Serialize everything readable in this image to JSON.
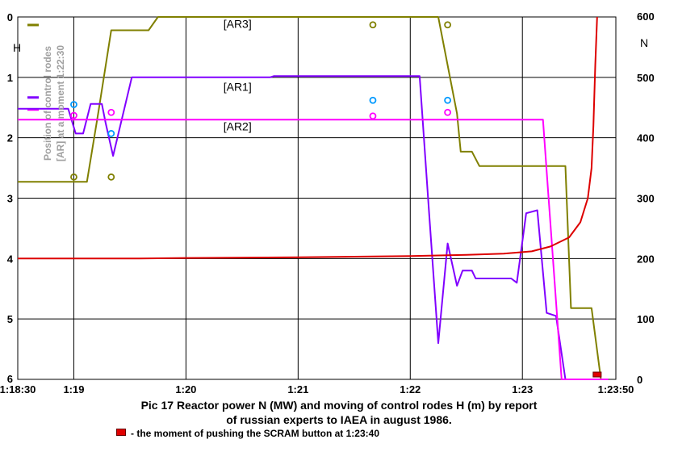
{
  "chart_data": {
    "type": "line",
    "title_line1": "Pic 17 Reactor power N (MW) and moving of control rodes H (m) by report",
    "title_line2": "of russian experts to IAEA in august 1986.",
    "legend_note": "-  the moment of pushing the SCRAM button at 1:23:40",
    "y_left_label": "H",
    "y_right_label": "N",
    "vertical_axis_title_line1": "Position of control rodes",
    "vertical_axis_title_line2": "[AR] at a moment 1:22:30",
    "x_range": [
      "1:18:30",
      "1:23:50"
    ],
    "x_ticks": [
      "1:18:30",
      "1:19",
      "1:20",
      "1:21",
      "1:22",
      "1:23",
      "1:23:50"
    ],
    "y_left_range": [
      0,
      6
    ],
    "y_left_ticks": [
      "0",
      "1",
      "2",
      "3",
      "4",
      "5",
      "6"
    ],
    "y_left_direction": "downward",
    "y_right_range": [
      0,
      600
    ],
    "y_right_ticks": [
      "600",
      "500",
      "400",
      "300",
      "200",
      "100",
      "0"
    ],
    "grid": true,
    "series": [
      {
        "name": "[AR3]",
        "axis": "left",
        "color": "#808000",
        "points": [
          [
            "1:18:30",
            2.73
          ],
          [
            "1:19:07",
            2.73
          ],
          [
            "1:19:13",
            1.6
          ],
          [
            "1:19:20",
            0.22
          ],
          [
            "1:19:40",
            0.22
          ],
          [
            "1:19:45",
            0
          ],
          [
            "1:22:15",
            0
          ],
          [
            "1:22:25",
            1.6
          ],
          [
            "1:22:27",
            2.23
          ],
          [
            "1:22:33",
            2.23
          ],
          [
            "1:22:37",
            2.47
          ],
          [
            "1:23:23",
            2.47
          ],
          [
            "1:23:26",
            4.82
          ],
          [
            "1:23:37",
            4.82
          ],
          [
            "1:23:42",
            6
          ]
        ]
      },
      {
        "name": "[AR1]",
        "axis": "left",
        "color": "#8000ff",
        "points": [
          [
            "1:18:30",
            1.52
          ],
          [
            "1:18:57",
            1.52
          ],
          [
            "1:19:01",
            1.93
          ],
          [
            "1:19:05",
            1.93
          ],
          [
            "1:19:09",
            1.44
          ],
          [
            "1:19:15",
            1.44
          ],
          [
            "1:19:17",
            1.75
          ],
          [
            "1:19:21",
            2.3
          ],
          [
            "1:19:31",
            1.0
          ],
          [
            "1:20:45",
            1.0
          ],
          [
            "1:20:47",
            0.98
          ],
          [
            "1:22:05",
            0.98
          ],
          [
            "1:22:10",
            3.2
          ],
          [
            "1:22:15",
            5.4
          ],
          [
            "1:22:20",
            3.75
          ],
          [
            "1:22:25",
            4.45
          ],
          [
            "1:22:28",
            4.2
          ],
          [
            "1:22:33",
            4.2
          ],
          [
            "1:22:35",
            4.33
          ],
          [
            "1:22:54",
            4.33
          ],
          [
            "1:22:57",
            4.4
          ],
          [
            "1:23:02",
            3.25
          ],
          [
            "1:23:08",
            3.2
          ],
          [
            "1:23:13",
            4.9
          ],
          [
            "1:23:18",
            4.95
          ],
          [
            "1:23:23",
            6
          ],
          [
            "1:23:40",
            6
          ]
        ]
      },
      {
        "name": "[AR2]",
        "axis": "left",
        "color": "#ff00ff",
        "points": [
          [
            "1:18:30",
            1.7
          ],
          [
            "1:23:11",
            1.7
          ],
          [
            "1:23:21",
            6
          ],
          [
            "1:23:46",
            6
          ]
        ]
      },
      {
        "name": "N",
        "axis": "right",
        "color": "#dd0000",
        "points": [
          [
            "1:18:30",
            200
          ],
          [
            "1:19:35",
            200
          ],
          [
            "1:20:00",
            201
          ],
          [
            "1:21:00",
            202
          ],
          [
            "1:22:00",
            204
          ],
          [
            "1:22:30",
            206
          ],
          [
            "1:22:50",
            208
          ],
          [
            "1:23:05",
            212
          ],
          [
            "1:23:15",
            220
          ],
          [
            "1:23:25",
            235
          ],
          [
            "1:23:31",
            260
          ],
          [
            "1:23:35",
            300
          ],
          [
            "1:23:37",
            350
          ],
          [
            "1:23:38",
            420
          ],
          [
            "1:23:39",
            520
          ],
          [
            "1:23:40",
            600
          ]
        ]
      }
    ],
    "point_markers": [
      {
        "series": "[AR3]",
        "color": "#808000",
        "points": [
          [
            "1:19",
            2.65
          ],
          [
            "1:19:20",
            2.65
          ],
          [
            "1:21:40",
            0.13
          ],
          [
            "1:22:20",
            0.13
          ]
        ]
      },
      {
        "series": "[AR1]",
        "color": "#0099ff",
        "points": [
          [
            "1:19",
            1.45
          ],
          [
            "1:19:20",
            1.93
          ],
          [
            "1:21:40",
            1.38
          ],
          [
            "1:22:20",
            1.38
          ]
        ]
      },
      {
        "series": "[AR2]",
        "color": "#ff00ff",
        "points": [
          [
            "1:19",
            1.63
          ],
          [
            "1:19:20",
            1.58
          ],
          [
            "1:21:40",
            1.64
          ],
          [
            "1:22:20",
            1.58
          ]
        ]
      }
    ],
    "series_labels": [
      {
        "text": "[AR3]",
        "at": [
          "1:20:20",
          0.18
        ]
      },
      {
        "text": "[AR1]",
        "at": [
          "1:20:20",
          1.22
        ]
      },
      {
        "text": "[AR2]",
        "at": [
          "1:20:20",
          1.88
        ]
      }
    ],
    "scram_marker": {
      "time": "1:23:40",
      "color": "#e00000",
      "h": 5.92
    }
  }
}
